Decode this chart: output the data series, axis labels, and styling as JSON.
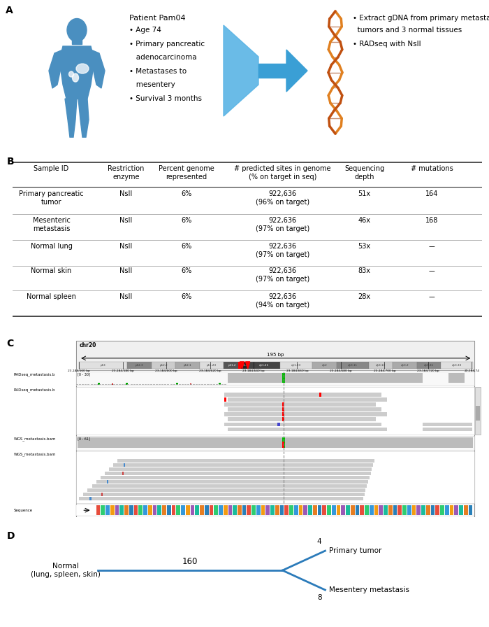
{
  "panel_A_label": "A",
  "panel_B_label": "B",
  "panel_C_label": "C",
  "panel_D_label": "D",
  "patient_info_title": "Patient Pam04",
  "patient_info_lines": [
    "• Age 74",
    "• Primary pancreatic",
    "   adenocarcinoma",
    "• Metastases to",
    "   mesentery",
    "• Survival 3 months"
  ],
  "right_info_lines": [
    "• Extract gDNA from primary metastatic",
    "  tumors and 3 normal tissues",
    "• RADseq with NsII"
  ],
  "table_headers": [
    "Sample ID",
    "Restriction\nenzyme",
    "Percent genome\nrepresented",
    "# predicted sites in genome\n(% on target in seq)",
    "Sequencing\ndepth",
    "# mutations"
  ],
  "table_rows": [
    [
      "Primary pancreatic\ntumor",
      "NsII",
      "6%",
      "922,636\n(96% on target)",
      "51x",
      "164"
    ],
    [
      "Mesenteric\nmetastasis",
      "NsII",
      "6%",
      "922,636\n(97% on target)",
      "46x",
      "168"
    ],
    [
      "Normal lung",
      "NsII",
      "6%",
      "922,636\n(97% on target)",
      "53x",
      "––"
    ],
    [
      "Normal skin",
      "NsII",
      "6%",
      "922,636\n(97% on target)",
      "83x",
      "––"
    ],
    [
      "Normal spleen",
      "NsII",
      "6%",
      "922,636\n(94% on target)",
      "28x",
      "––"
    ]
  ],
  "igv_chr": "chr20",
  "igv_bands": [
    "p13",
    "p12.3",
    "p12.2",
    "p12.1",
    "p11.23",
    "p11.2",
    "p11.1",
    "q11.21",
    "q11.23",
    "q12",
    "q13.11",
    "q13.13",
    "q13.2",
    "q13.31",
    "q13.33"
  ],
  "igv_coord_label": "195 bp",
  "igv_coords": [
    "23,184,560 bp",
    "23,184,580 bp",
    "23,184,600 bp",
    "23,184,620 bp",
    "23,184,640 bp",
    "23,184,660 bp",
    "23,184,680 bp",
    "23,184,700 bp",
    "23,184,720 bp",
    "23,184,74"
  ],
  "tree_normal_label": "Normal\n(lung, spleen, skin)",
  "tree_shared_label": "160",
  "tree_primary_num": "4",
  "tree_primary_label": "Primary tumor",
  "tree_metastasis_num": "8",
  "tree_metastasis_label": "Mesentery metastasis",
  "background_color": "#ffffff",
  "text_color": "#000000",
  "line_color": "#000000",
  "table_line_color": "#aaaaaa",
  "tree_line_color": "#2b7bba",
  "panel_label_fontsize": 10,
  "body_fontsize": 7.5,
  "header_fontsize": 7.5,
  "small_fontsize": 6.0
}
